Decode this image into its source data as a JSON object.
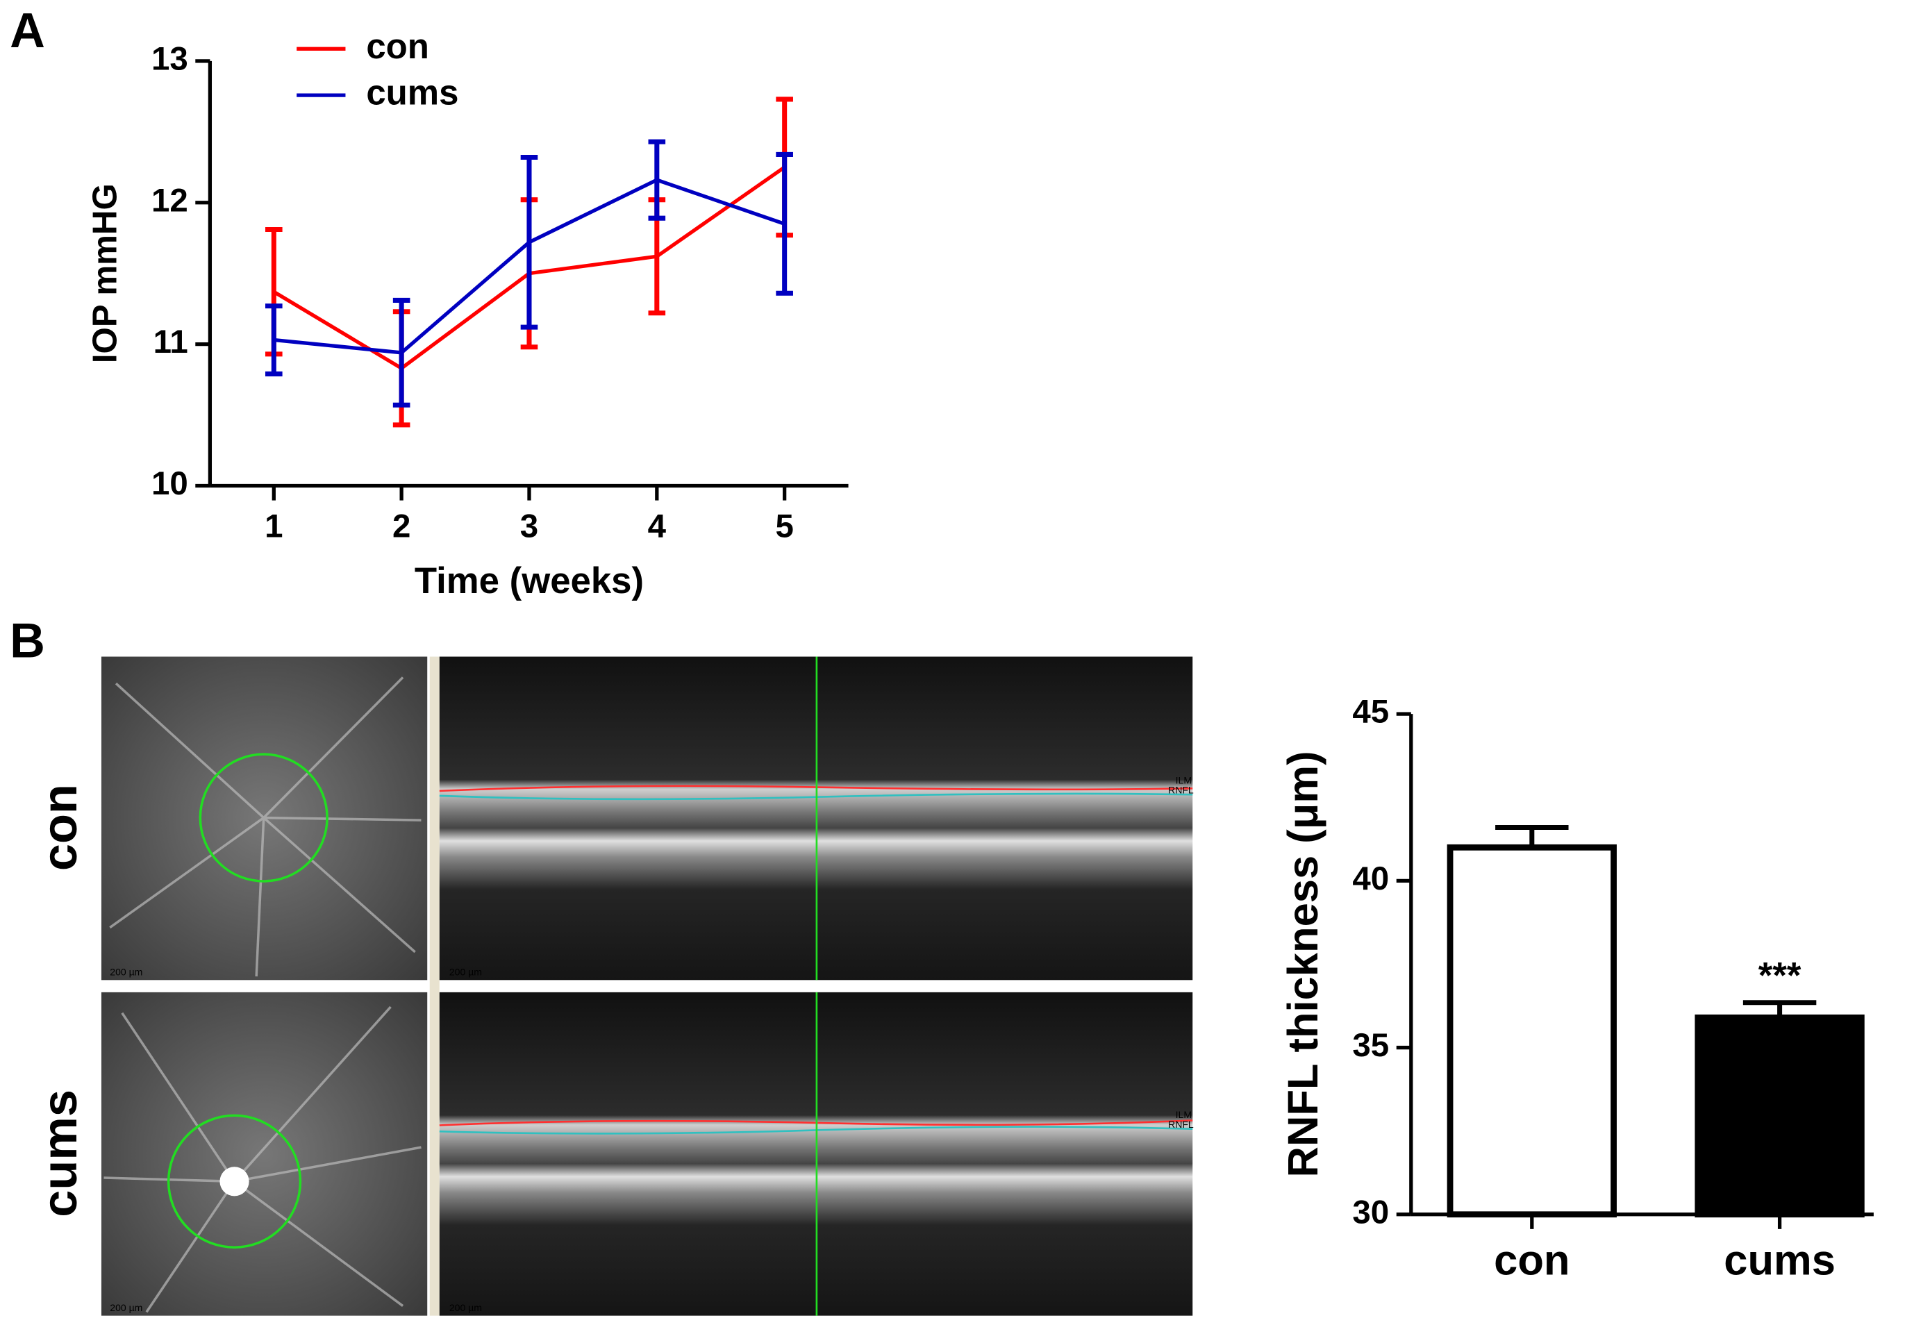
{
  "panel_labels": [
    "A",
    "B"
  ],
  "chart_data": [
    {
      "type": "line",
      "x": [
        1,
        2,
        3,
        4,
        5
      ],
      "xlim": [
        0.5,
        5.5
      ],
      "xticks": [
        1,
        2,
        3,
        4,
        5
      ],
      "ylim": [
        10,
        13
      ],
      "yticks": [
        10,
        11,
        12,
        13
      ],
      "xlabel": "Time (weeks)",
      "ylabel": "IOP mmHG",
      "legend": "upper left",
      "series": [
        {
          "name": "con",
          "color": "#ff0000",
          "values": [
            11.37,
            10.83,
            11.5,
            11.62,
            12.25
          ],
          "errors": [
            0.44,
            0.4,
            0.52,
            0.4,
            0.48
          ]
        },
        {
          "name": "cums",
          "color": "#0000c0",
          "values": [
            11.03,
            10.94,
            11.72,
            12.16,
            11.85
          ],
          "errors": [
            0.24,
            0.37,
            0.6,
            0.27,
            0.49
          ]
        }
      ]
    },
    {
      "type": "bar",
      "categories": [
        "con",
        "cums"
      ],
      "values": [
        41.0,
        35.9
      ],
      "errors": [
        0.6,
        0.45
      ],
      "colors": [
        "#ffffff",
        "#000000"
      ],
      "ylim": [
        30,
        45
      ],
      "yticks": [
        30,
        35,
        40,
        45
      ],
      "ylabel": "RNFL thickness (μm)",
      "annotation": "***"
    }
  ],
  "images": {
    "row_labels": [
      "con",
      "cums"
    ],
    "scale_label": "200 µm",
    "layer_labels": [
      "ILM",
      "RNFL"
    ]
  }
}
